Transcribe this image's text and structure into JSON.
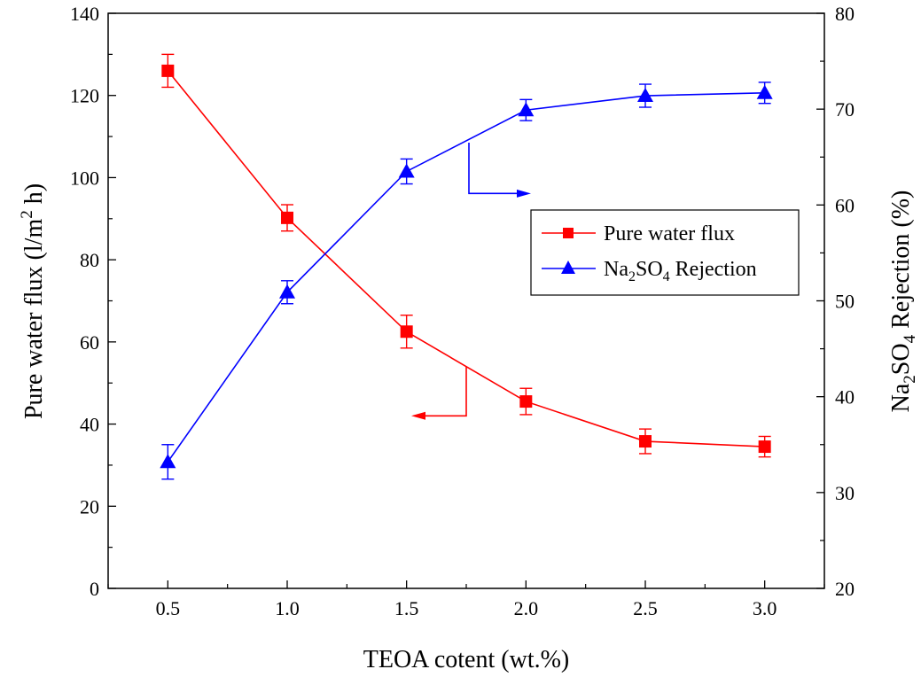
{
  "chart_data": {
    "type": "line",
    "xlabel": "TEOA cotent (wt.%)",
    "ylabel_left": "Pure water flux (l/m",
    "ylabel_left_sup": "2",
    "ylabel_left_tail": " h)",
    "ylabel_right_pre": "Na",
    "ylabel_right_sub1": "2",
    "ylabel_right_mid": "SO",
    "ylabel_right_sub2": "4",
    "ylabel_right_tail": " Rejection (%)",
    "x": [
      0.5,
      1.0,
      1.5,
      2.0,
      2.5,
      3.0
    ],
    "x_tick_labels": [
      "0.5",
      "1.0",
      "1.5",
      "2.0",
      "2.5",
      "3.0"
    ],
    "xlim": [
      0.25,
      3.25
    ],
    "ylim_left": [
      0,
      140
    ],
    "y_left_ticks": [
      0,
      20,
      40,
      60,
      80,
      100,
      120,
      140
    ],
    "ylim_right": [
      20,
      80
    ],
    "y_right_ticks": [
      20,
      30,
      40,
      50,
      60,
      70,
      80
    ],
    "series": [
      {
        "name": "Pure water flux",
        "axis": "left",
        "color": "#ff0000",
        "marker": "square",
        "values": [
          126,
          90.2,
          62.5,
          45.5,
          35.8,
          34.5
        ],
        "errors": [
          4,
          3.2,
          4,
          3.2,
          3,
          2.5
        ]
      },
      {
        "name_pre": "Na",
        "name_sub1": "2",
        "name_mid": "SO",
        "name_sub2": "4",
        "name_tail": " Rejection",
        "axis": "right",
        "color": "#0000ff",
        "marker": "triangle",
        "values": [
          33.2,
          50.9,
          63.5,
          69.9,
          71.4,
          71.7
        ],
        "errors": [
          1.8,
          1.2,
          1.3,
          1.1,
          1.2,
          1.1
        ]
      }
    ],
    "legend_position": "right-middle",
    "grid": false
  }
}
